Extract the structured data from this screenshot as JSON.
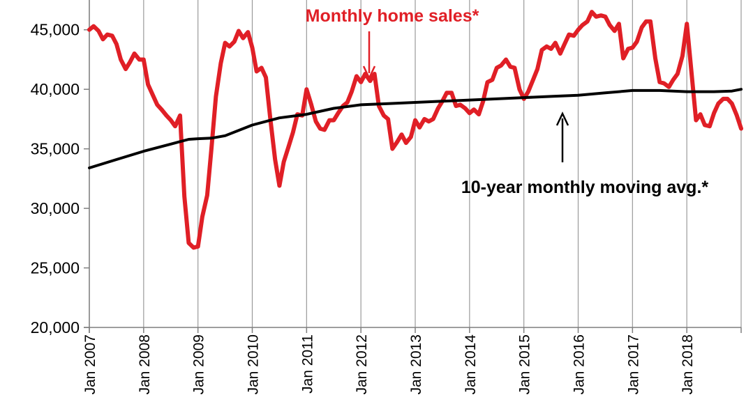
{
  "chart_data": {
    "type": "line",
    "title": "",
    "xlabel": "",
    "ylabel": "",
    "ylim": [
      20000,
      47500
    ],
    "y_ticks": [
      {
        "value": 20000,
        "label": "20,000"
      },
      {
        "value": 25000,
        "label": "25,000"
      },
      {
        "value": 30000,
        "label": "30,000"
      },
      {
        "value": 35000,
        "label": "35,000"
      },
      {
        "value": 40000,
        "label": "40,000"
      },
      {
        "value": 45000,
        "label": "45,000"
      }
    ],
    "x_ticks": [
      {
        "value": 2007,
        "label": "Jan 2007"
      },
      {
        "value": 2008,
        "label": "Jan 2008"
      },
      {
        "value": 2009,
        "label": "Jan 2009"
      },
      {
        "value": 2010,
        "label": "Jan 2010"
      },
      {
        "value": 2011,
        "label": "Jan 2011"
      },
      {
        "value": 2012,
        "label": "Jan 2012"
      },
      {
        "value": 2013,
        "label": "Jan 2013"
      },
      {
        "value": 2014,
        "label": "Jan 2014"
      },
      {
        "value": 2015,
        "label": "Jan 2015"
      },
      {
        "value": 2016,
        "label": "Jan 2016"
      },
      {
        "value": 2017,
        "label": "Jan 2017"
      },
      {
        "value": 2018,
        "label": "Jan 2018"
      }
    ],
    "grid": "vertical",
    "series": [
      {
        "name": "Monthly home sales*",
        "color": "#e01f26",
        "points": [
          [
            2007.0,
            45000
          ],
          [
            2007.08,
            45300
          ],
          [
            2007.17,
            44900
          ],
          [
            2007.25,
            44200
          ],
          [
            2007.33,
            44600
          ],
          [
            2007.42,
            44500
          ],
          [
            2007.5,
            43800
          ],
          [
            2007.58,
            42500
          ],
          [
            2007.67,
            41700
          ],
          [
            2007.75,
            42300
          ],
          [
            2007.83,
            43000
          ],
          [
            2007.92,
            42500
          ],
          [
            2008.0,
            42500
          ],
          [
            2008.08,
            40400
          ],
          [
            2008.17,
            39500
          ],
          [
            2008.25,
            38700
          ],
          [
            2008.33,
            38300
          ],
          [
            2008.42,
            37800
          ],
          [
            2008.5,
            37400
          ],
          [
            2008.58,
            36900
          ],
          [
            2008.67,
            37800
          ],
          [
            2008.75,
            31000
          ],
          [
            2008.83,
            27100
          ],
          [
            2008.92,
            26700
          ],
          [
            2009.0,
            26800
          ],
          [
            2009.08,
            29300
          ],
          [
            2009.17,
            31100
          ],
          [
            2009.25,
            35100
          ],
          [
            2009.33,
            39400
          ],
          [
            2009.42,
            42200
          ],
          [
            2009.5,
            43900
          ],
          [
            2009.58,
            43600
          ],
          [
            2009.67,
            44000
          ],
          [
            2009.75,
            44900
          ],
          [
            2009.83,
            44300
          ],
          [
            2009.92,
            44800
          ],
          [
            2010.0,
            43500
          ],
          [
            2010.08,
            41500
          ],
          [
            2010.17,
            41800
          ],
          [
            2010.25,
            41000
          ],
          [
            2010.33,
            37600
          ],
          [
            2010.42,
            34100
          ],
          [
            2010.5,
            31900
          ],
          [
            2010.58,
            33900
          ],
          [
            2010.67,
            35200
          ],
          [
            2010.75,
            36400
          ],
          [
            2010.83,
            37900
          ],
          [
            2010.92,
            37800
          ],
          [
            2011.0,
            40000
          ],
          [
            2011.08,
            38800
          ],
          [
            2011.17,
            37300
          ],
          [
            2011.25,
            36700
          ],
          [
            2011.33,
            36600
          ],
          [
            2011.42,
            37400
          ],
          [
            2011.5,
            37400
          ],
          [
            2011.58,
            38000
          ],
          [
            2011.67,
            38600
          ],
          [
            2011.75,
            38900
          ],
          [
            2011.83,
            39800
          ],
          [
            2011.92,
            41100
          ],
          [
            2012.0,
            40600
          ],
          [
            2012.08,
            41300
          ],
          [
            2012.17,
            40700
          ],
          [
            2012.25,
            41300
          ],
          [
            2012.33,
            38600
          ],
          [
            2012.42,
            37800
          ],
          [
            2012.5,
            37500
          ],
          [
            2012.58,
            35000
          ],
          [
            2012.67,
            35600
          ],
          [
            2012.75,
            36200
          ],
          [
            2012.83,
            35500
          ],
          [
            2012.92,
            36000
          ],
          [
            2013.0,
            37400
          ],
          [
            2013.08,
            36800
          ],
          [
            2013.17,
            37500
          ],
          [
            2013.25,
            37300
          ],
          [
            2013.33,
            37500
          ],
          [
            2013.42,
            38400
          ],
          [
            2013.5,
            39000
          ],
          [
            2013.58,
            39700
          ],
          [
            2013.67,
            39700
          ],
          [
            2013.75,
            38600
          ],
          [
            2013.83,
            38700
          ],
          [
            2013.92,
            38400
          ],
          [
            2014.0,
            38000
          ],
          [
            2014.08,
            38300
          ],
          [
            2014.17,
            37900
          ],
          [
            2014.25,
            39000
          ],
          [
            2014.33,
            40600
          ],
          [
            2014.42,
            40800
          ],
          [
            2014.5,
            41800
          ],
          [
            2014.58,
            42000
          ],
          [
            2014.67,
            42500
          ],
          [
            2014.75,
            41900
          ],
          [
            2014.83,
            41800
          ],
          [
            2014.92,
            40000
          ],
          [
            2015.0,
            39200
          ],
          [
            2015.08,
            39800
          ],
          [
            2015.17,
            40800
          ],
          [
            2015.25,
            41700
          ],
          [
            2015.33,
            43300
          ],
          [
            2015.42,
            43600
          ],
          [
            2015.5,
            43400
          ],
          [
            2015.58,
            43900
          ],
          [
            2015.67,
            43000
          ],
          [
            2015.75,
            43800
          ],
          [
            2015.83,
            44600
          ],
          [
            2015.92,
            44500
          ],
          [
            2016.0,
            45000
          ],
          [
            2016.08,
            45400
          ],
          [
            2016.17,
            45700
          ],
          [
            2016.25,
            46500
          ],
          [
            2016.33,
            46100
          ],
          [
            2016.42,
            46200
          ],
          [
            2016.5,
            46100
          ],
          [
            2016.58,
            45400
          ],
          [
            2016.67,
            44900
          ],
          [
            2016.75,
            45500
          ],
          [
            2016.83,
            42600
          ],
          [
            2016.92,
            43400
          ],
          [
            2017.0,
            43500
          ],
          [
            2017.08,
            44000
          ],
          [
            2017.17,
            45200
          ],
          [
            2017.25,
            45700
          ],
          [
            2017.33,
            45700
          ],
          [
            2017.42,
            42600
          ],
          [
            2017.5,
            40600
          ],
          [
            2017.58,
            40500
          ],
          [
            2017.67,
            40200
          ],
          [
            2017.75,
            40800
          ],
          [
            2017.83,
            41300
          ],
          [
            2017.92,
            42800
          ],
          [
            2018.0,
            45500
          ],
          [
            2018.08,
            41700
          ],
          [
            2018.17,
            37400
          ],
          [
            2018.25,
            37900
          ],
          [
            2018.33,
            37000
          ],
          [
            2018.42,
            36900
          ],
          [
            2018.5,
            38000
          ],
          [
            2018.58,
            38800
          ],
          [
            2018.67,
            39200
          ],
          [
            2018.75,
            39200
          ],
          [
            2018.83,
            38800
          ],
          [
            2018.92,
            37800
          ],
          [
            2019.0,
            36700
          ]
        ]
      },
      {
        "name": "10-year monthly moving avg.*",
        "color": "#000000",
        "points": [
          [
            2007.0,
            33400
          ],
          [
            2007.5,
            34100
          ],
          [
            2008.0,
            34800
          ],
          [
            2008.5,
            35400
          ],
          [
            2008.83,
            35800
          ],
          [
            2009.0,
            35850
          ],
          [
            2009.25,
            35900
          ],
          [
            2009.5,
            36100
          ],
          [
            2010.0,
            37000
          ],
          [
            2010.5,
            37600
          ],
          [
            2011.0,
            37900
          ],
          [
            2011.5,
            38400
          ],
          [
            2012.0,
            38700
          ],
          [
            2012.5,
            38800
          ],
          [
            2013.0,
            38900
          ],
          [
            2013.5,
            39000
          ],
          [
            2014.0,
            39100
          ],
          [
            2014.5,
            39200
          ],
          [
            2015.0,
            39300
          ],
          [
            2015.5,
            39400
          ],
          [
            2016.0,
            39500
          ],
          [
            2016.5,
            39700
          ],
          [
            2017.0,
            39900
          ],
          [
            2017.5,
            39900
          ],
          [
            2018.0,
            39800
          ],
          [
            2018.5,
            39800
          ],
          [
            2018.83,
            39850
          ],
          [
            2019.0,
            40000
          ]
        ]
      }
    ],
    "annotations": [
      {
        "text": "Monthly home sales*",
        "color": "#e01f26"
      },
      {
        "text": "10-year monthly moving avg.*",
        "color": "#000000"
      }
    ]
  }
}
